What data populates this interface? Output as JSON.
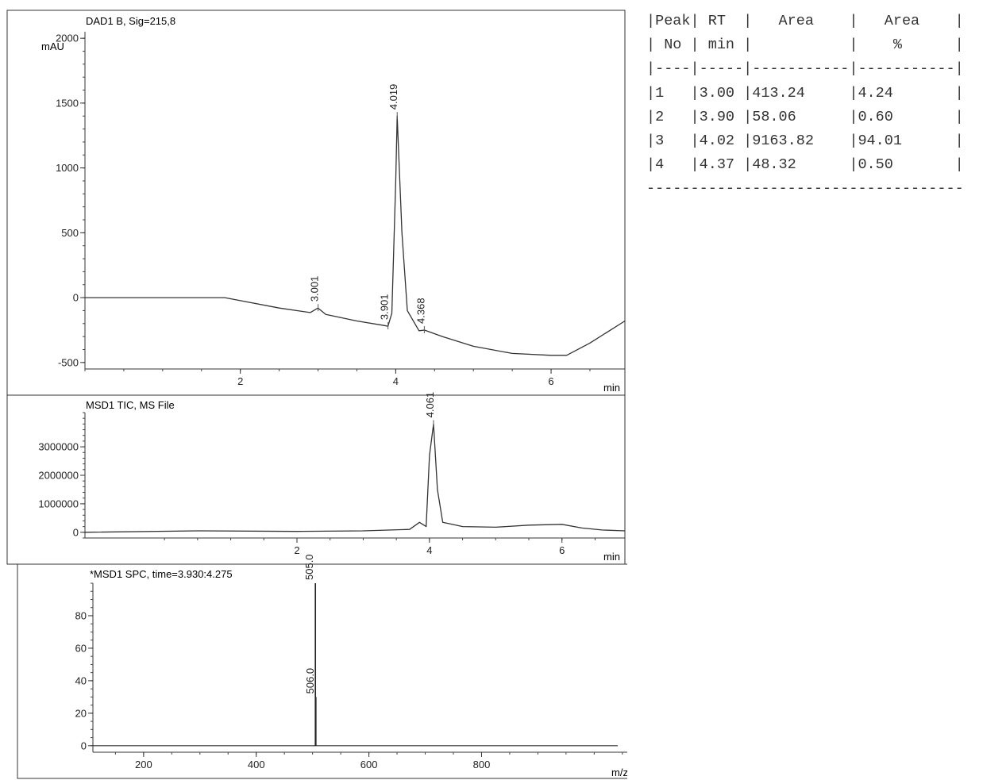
{
  "peak_table": {
    "header_lines": [
      "|Peak| RT  |   Area    |   Area    |",
      "| No | min |           |    %      |",
      "|----|-----|-----------|-----------|"
    ],
    "rows": [
      "|1   |3.00 |413.24     |4.24       |",
      "|2   |3.90 |58.06      |0.60       |",
      "|3   |4.02 |9163.82    |94.01      |",
      "|4   |4.37 |48.32      |0.50       |"
    ],
    "footer_line": "------------------------------------"
  },
  "chart_data": [
    {
      "type": "line",
      "title": "DAD1 B, Sig=215,8",
      "ylabel": "mAU",
      "xlabel": "min",
      "xlim": [
        0,
        6.95
      ],
      "ylim": [
        -550,
        2050
      ],
      "x_ticks": [
        "2",
        "4",
        "6"
      ],
      "y_ticks": [
        "2000",
        "1500",
        "1000",
        "500",
        "0",
        "-500"
      ],
      "series": [
        {
          "x": [
            0,
            1.8,
            2.5,
            2.9,
            3.0,
            3.1,
            3.5,
            3.85,
            3.9,
            3.95,
            4.0,
            4.019,
            4.08,
            4.15,
            4.3,
            4.37,
            4.6,
            5.0,
            5.5,
            6.0,
            6.2,
            6.5,
            6.95
          ],
          "y": [
            0,
            0,
            -80,
            -115,
            -80,
            -130,
            -180,
            -215,
            -220,
            -120,
            900,
            1400,
            500,
            -100,
            -255,
            -250,
            -300,
            -375,
            -430,
            -445,
            -445,
            -350,
            -180
          ]
        }
      ],
      "peak_labels": [
        {
          "x": 3.001,
          "y": -80,
          "label": "3.001"
        },
        {
          "x": 3.901,
          "y": -220,
          "label": "3.901"
        },
        {
          "x": 4.019,
          "y": 1400,
          "label": "4.019"
        },
        {
          "x": 4.368,
          "y": -250,
          "label": "4.368"
        }
      ]
    },
    {
      "type": "line",
      "title": "MSD1 TIC, MS File",
      "xlabel": "min",
      "xlim": [
        -1.2,
        6.95
      ],
      "ylim": [
        -200000,
        4200000
      ],
      "x_ticks": [
        "2",
        "4",
        "6"
      ],
      "y_ticks": [
        "3000000",
        "2000000",
        "1000000",
        "0"
      ],
      "series": [
        {
          "x": [
            -1.2,
            0.5,
            2.0,
            3.0,
            3.7,
            3.85,
            3.95,
            4.0,
            4.061,
            4.12,
            4.2,
            4.3,
            4.5,
            5.0,
            5.5,
            6.0,
            6.3,
            6.6,
            6.95
          ],
          "y": [
            0,
            50000,
            30000,
            50000,
            100000,
            350000,
            200000,
            2700000,
            3800000,
            1500000,
            350000,
            300000,
            200000,
            180000,
            250000,
            280000,
            150000,
            80000,
            50000
          ]
        }
      ],
      "peak_labels": [
        {
          "x": 4.061,
          "y": 3800000,
          "label": "4.061"
        }
      ]
    },
    {
      "type": "bar",
      "title": "*MSD1 SPC, time=3.930:4.275",
      "xlabel": "m/z",
      "xlim": [
        110,
        1070
      ],
      "ylim": [
        -4,
        100
      ],
      "x_ticks": [
        "200",
        "400",
        "600",
        "800"
      ],
      "y_ticks": [
        "80",
        "60",
        "40",
        "20",
        "0"
      ],
      "peaks": [
        {
          "x": 505.0,
          "y": 100,
          "label": "505.0"
        },
        {
          "x": 506.0,
          "y": 30,
          "label": "506.0"
        }
      ]
    }
  ]
}
